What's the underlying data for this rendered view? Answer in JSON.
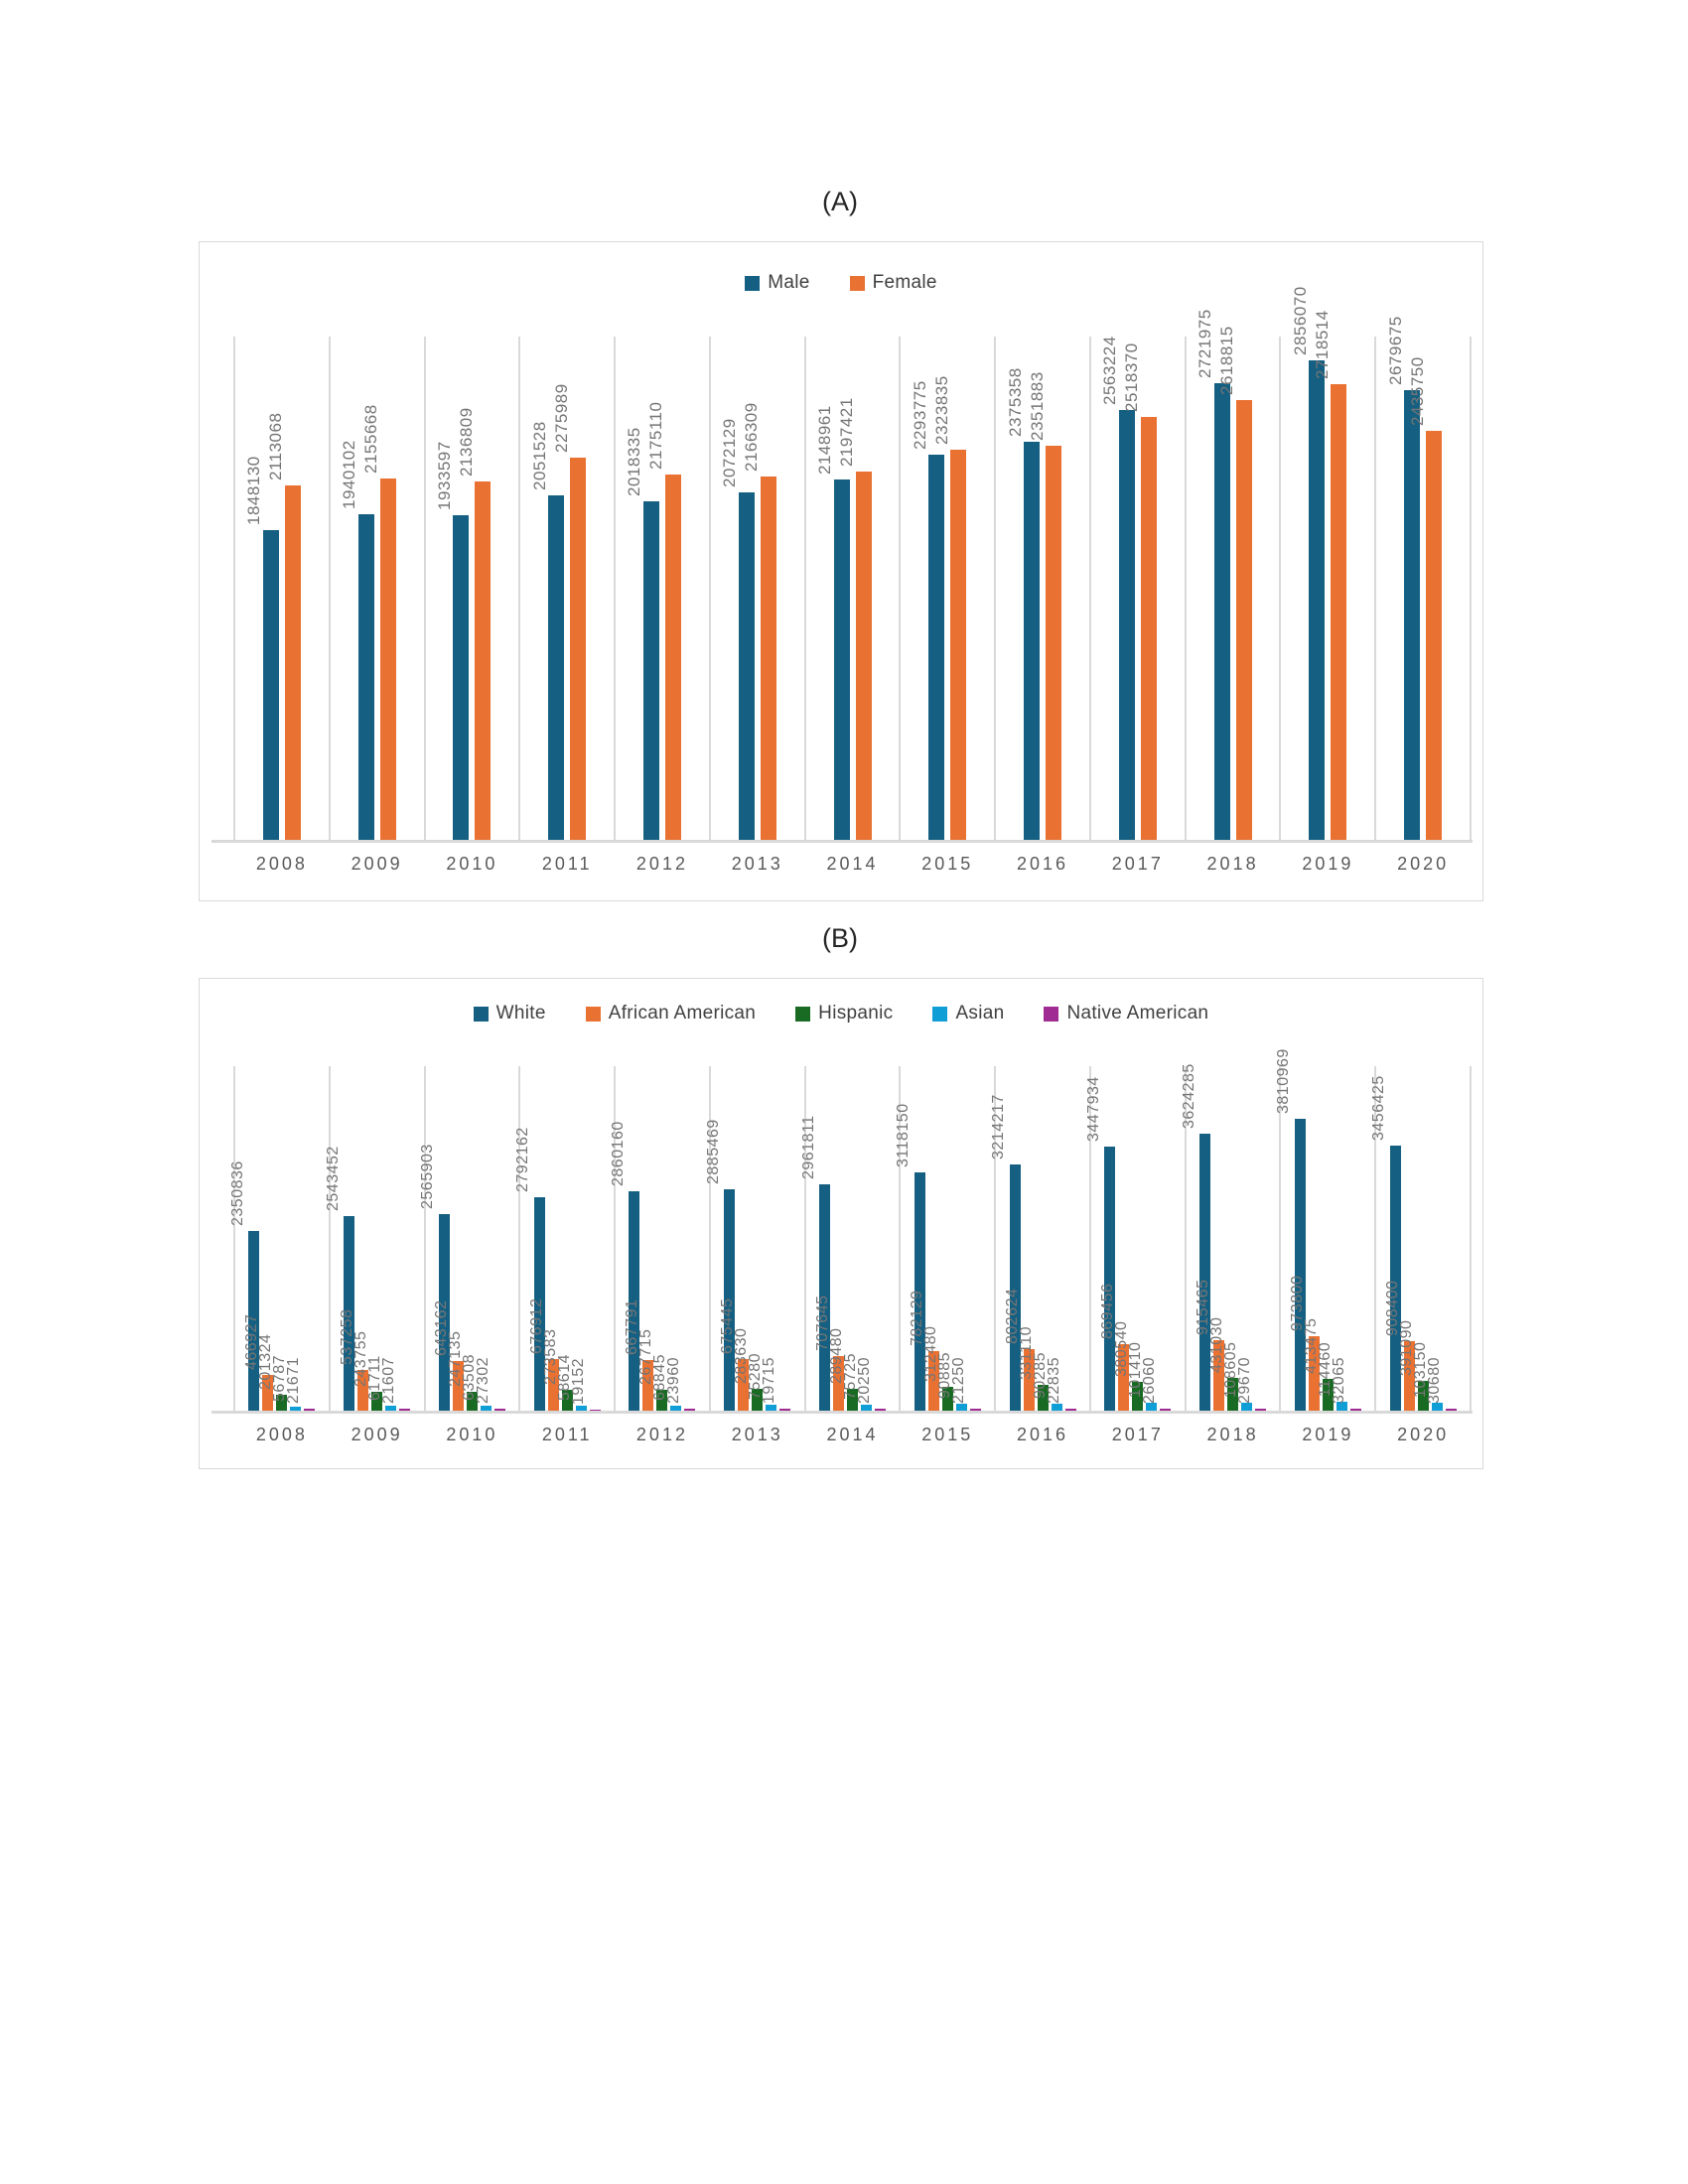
{
  "styles": {
    "axis_color": "#D9D9D9",
    "data_label_color": "#757575",
    "tick_label_color": "#595959",
    "legend_text_color": "#404040",
    "title_color": "#262626"
  },
  "chart_data": [
    {
      "id": "A",
      "type": "bar",
      "title": "(A)",
      "legend_position": "top",
      "grid": "category-separator-lines",
      "data_labels": "rotated-90-above-bars",
      "categories": [
        "2008",
        "2009",
        "2010",
        "2011",
        "2012",
        "2013",
        "2014",
        "2015",
        "2016",
        "2017",
        "2018",
        "2019",
        "2020"
      ],
      "ylim": [
        0,
        3000000
      ],
      "series": [
        {
          "name": "Male",
          "color": "#156082",
          "values": [
            1848130,
            1940102,
            1933597,
            2051528,
            2018335,
            2072129,
            2148961,
            2293775,
            2375358,
            2563224,
            2721975,
            2856070,
            2679675
          ]
        },
        {
          "name": "Female",
          "color": "#E97132",
          "values": [
            2113068,
            2155668,
            2136809,
            2275989,
            2175110,
            2166309,
            2197421,
            2323835,
            2351883,
            2518370,
            2618815,
            2718514,
            2435750
          ]
        }
      ]
    },
    {
      "id": "B",
      "type": "bar",
      "title": "(B)",
      "legend_position": "top",
      "grid": "category-separator-lines",
      "data_labels": "rotated-90-above-bars",
      "categories": [
        "2008",
        "2009",
        "2010",
        "2011",
        "2012",
        "2013",
        "2014",
        "2015",
        "2016",
        "2017",
        "2018",
        "2019",
        "2020"
      ],
      "ylim": [
        0,
        4500000
      ],
      "series": [
        {
          "name": "White",
          "color": "#156082",
          "values": [
            2350836,
            2543452,
            2565903,
            2792162,
            2860160,
            2885469,
            2961811,
            3118150,
            3214217,
            3447934,
            3624285,
            3810969,
            3456425
          ]
        },
        {
          "name": "African American",
          "color": "#E97132",
          "values": [
            466927,
            537258,
            643162,
            676912,
            667791,
            675445,
            707645,
            782129,
            802624,
            869456,
            915465,
            973800,
            908400
          ]
        },
        {
          "name": "Hispanic",
          "color": "#196B24",
          "values": [
            201324,
            243755,
            247135,
            273583,
            267715,
            283630,
            289480,
            312480,
            331110,
            380540,
            431030,
            413475,
            391090
          ]
        },
        {
          "name": "Asian",
          "color": "#0F9ED5",
          "values": [
            56787,
            61711,
            63508,
            58614,
            68845,
            75280,
            75725,
            90885,
            90285,
            101410,
            108605,
            114460,
            103150
          ]
        },
        {
          "name": "Native American",
          "color": "#A02B93",
          "values": [
            21671,
            21607,
            27302,
            19152,
            23960,
            19715,
            20250,
            21250,
            22835,
            26060,
            29670,
            32065,
            30680
          ]
        }
      ]
    }
  ]
}
